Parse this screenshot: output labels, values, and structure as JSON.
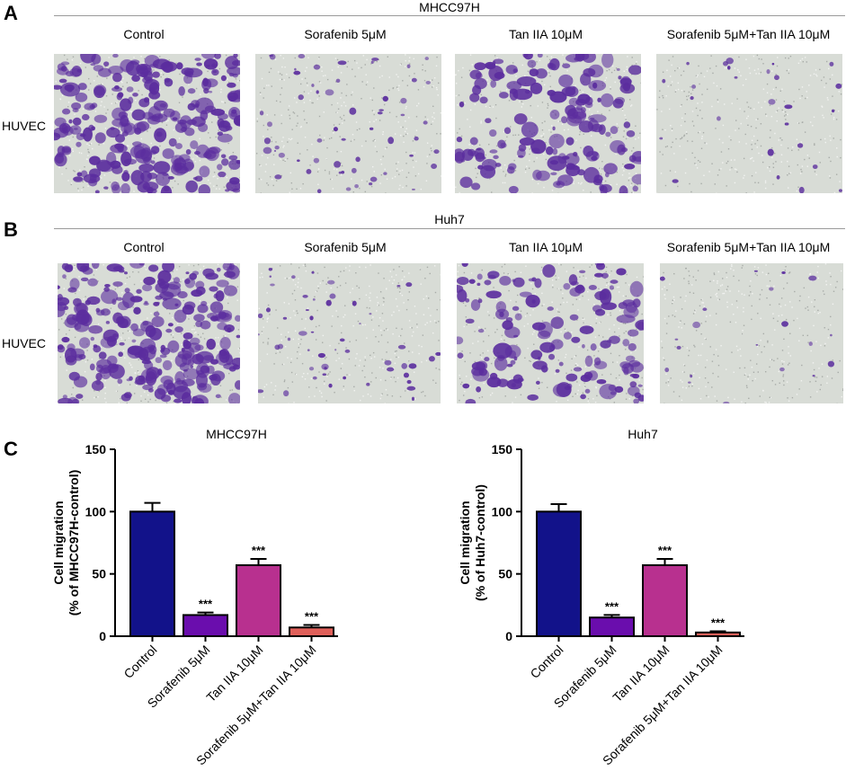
{
  "panels": {
    "A": {
      "letter": "A",
      "group_title": "MHCC97H",
      "row_label": "HUVEC",
      "columns": [
        "Control",
        "Sorafenib 5μM",
        "Tan IIA 10μM",
        "Sorafenib 5μM+Tan IIA 10μM"
      ]
    },
    "B": {
      "letter": "B",
      "group_title": "Huh7",
      "row_label": "HUVEC",
      "columns": [
        "Control",
        "Sorafenib 5μM",
        "Tan IIA 10μM",
        "Sorafenib 5μM+Tan IIA 10μM"
      ]
    },
    "C": {
      "letter": "C"
    }
  },
  "micrographs": {
    "stain_color": "#5b2d9e",
    "background_color": "#d8dcd6",
    "density": [
      [
        1.0,
        0.18,
        0.6,
        0.06
      ],
      [
        1.0,
        0.16,
        0.55,
        0.04
      ]
    ]
  },
  "chart_data": [
    {
      "type": "bar",
      "title": "MHCC97H",
      "ylabel": "Cell migration (% of MHCC97H-control)",
      "ylabel_lines": [
        "Cell migration",
        "(% of MHCC97H-control)"
      ],
      "categories": [
        "Control",
        "Sorafenib 5μM",
        "Tan IIA 10μM",
        "Sorafenib 5μM+Tan IIA 10μM"
      ],
      "values": [
        100,
        17,
        57,
        7
      ],
      "errors": [
        7,
        2,
        5,
        2
      ],
      "significance": [
        "",
        "***",
        "***",
        "***"
      ],
      "colors": [
        "#12128a",
        "#6a0dad",
        "#b8308f",
        "#e0605a"
      ],
      "ylim": [
        0,
        150
      ],
      "yticks": [
        0,
        50,
        100,
        150
      ]
    },
    {
      "type": "bar",
      "title": "Huh7",
      "ylabel": "Cell migration (% of Huh7-control)",
      "ylabel_lines": [
        "Cell migration",
        "(% of Huh7-control)"
      ],
      "categories": [
        "Control",
        "Sorafenib 5μM",
        "Tan IIA 10μM",
        "Sorafenib 5μM+Tan IIA 10μM"
      ],
      "values": [
        100,
        15,
        57,
        3
      ],
      "errors": [
        6,
        2,
        5,
        1
      ],
      "significance": [
        "",
        "***",
        "***",
        "***"
      ],
      "colors": [
        "#12128a",
        "#6a0dad",
        "#b8308f",
        "#e0605a"
      ],
      "ylim": [
        0,
        150
      ],
      "yticks": [
        0,
        50,
        100,
        150
      ]
    }
  ]
}
